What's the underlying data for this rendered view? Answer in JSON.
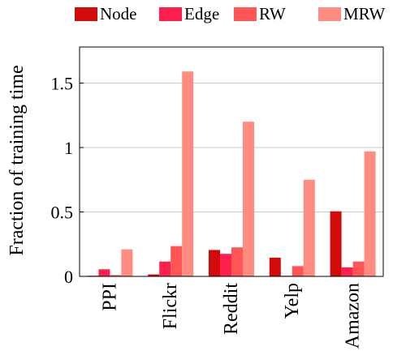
{
  "chart_data": {
    "type": "bar",
    "title": "",
    "xlabel": "",
    "ylabel": "Fraction of training time",
    "ylim": [
      0,
      1.8
    ],
    "yticks": [
      0,
      0.5,
      1,
      1.5
    ],
    "ytick_labels": [
      "0",
      "0.5",
      "1",
      "1.5"
    ],
    "grid": "horizontal",
    "legend_position": "top",
    "categories": [
      "PPI",
      "Flickr",
      "Reddit",
      "Yelp",
      "Amazon"
    ],
    "series": [
      {
        "name": "Node",
        "color": "#d10a0a",
        "values": [
          0.005,
          0.015,
          0.205,
          0.145,
          0.505
        ]
      },
      {
        "name": "Edge",
        "color": "#ff1f4f",
        "values": [
          0.055,
          0.115,
          0.175,
          0.005,
          0.07
        ]
      },
      {
        "name": "RW",
        "color": "#ff5555",
        "values": [
          0.01,
          0.235,
          0.225,
          0.08,
          0.115
        ]
      },
      {
        "name": "MRW",
        "color": "#ff8c80",
        "values": [
          0.21,
          1.59,
          1.2,
          0.75,
          0.97
        ]
      }
    ]
  }
}
